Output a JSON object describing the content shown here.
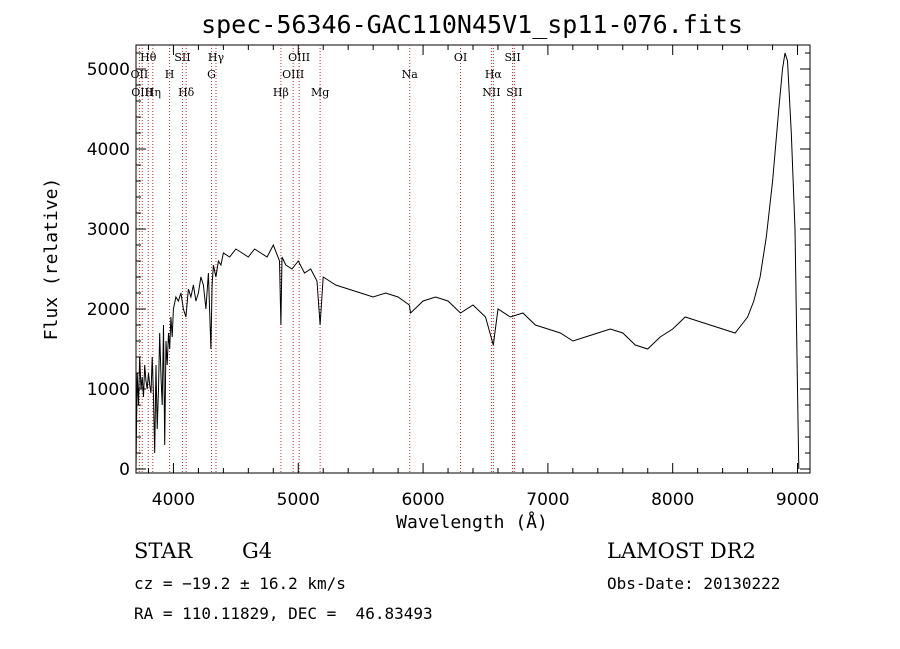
{
  "chart_data": {
    "type": "line",
    "title": "spec-56346-GAC110N45V1_sp11-076.fits",
    "xlabel": "Wavelength (Å)",
    "ylabel": "Flux (relative)",
    "xlim": [
      3700,
      9100
    ],
    "ylim": [
      -50,
      5300
    ],
    "x_ticks": [
      4000,
      5000,
      6000,
      7000,
      8000,
      9000
    ],
    "y_ticks": [
      0,
      1000,
      2000,
      3000,
      4000,
      5000
    ],
    "grid": false,
    "series": [
      {
        "x": [
          3700,
          3710,
          3720,
          3730,
          3740,
          3750,
          3760,
          3770,
          3780,
          3790,
          3800,
          3810,
          3820,
          3830,
          3840,
          3850,
          3860,
          3870,
          3880,
          3890,
          3900,
          3910,
          3920,
          3930,
          3940,
          3950,
          3960,
          3970,
          3980,
          3990,
          4000,
          4020,
          4040,
          4060,
          4080,
          4100,
          4120,
          4140,
          4160,
          4180,
          4200,
          4220,
          4240,
          4260,
          4280,
          4300,
          4310,
          4320,
          4340,
          4360,
          4380,
          4400,
          4450,
          4500,
          4550,
          4600,
          4650,
          4700,
          4750,
          4800,
          4850,
          4861,
          4870,
          4900,
          4950,
          5000,
          5050,
          5100,
          5150,
          5175,
          5200,
          5250,
          5300,
          5400,
          5500,
          5600,
          5700,
          5800,
          5890,
          5900,
          6000,
          6100,
          6200,
          6300,
          6400,
          6500,
          6563,
          6600,
          6700,
          6800,
          6900,
          7000,
          7100,
          7200,
          7300,
          7400,
          7500,
          7600,
          7700,
          7800,
          7900,
          8000,
          8100,
          8200,
          8300,
          8400,
          8500,
          8550,
          8600,
          8650,
          8700,
          8750,
          8800,
          8850,
          8880,
          8900,
          8920,
          8950,
          8980,
          9000,
          9010
        ],
        "y": [
          0,
          1200,
          800,
          1400,
          1000,
          1150,
          900,
          1300,
          1100,
          1000,
          1200,
          1050,
          950,
          1400,
          900,
          200,
          1300,
          500,
          1000,
          1700,
          1150,
          800,
          1800,
          300,
          1600,
          1300,
          1700,
          1500,
          1900,
          1650,
          2000,
          2150,
          2100,
          2200,
          2000,
          1900,
          2250,
          2150,
          2300,
          2100,
          2200,
          2400,
          2300,
          2000,
          2450,
          1500,
          2300,
          2550,
          2400,
          2600,
          2550,
          2700,
          2650,
          2750,
          2700,
          2650,
          2750,
          2700,
          2650,
          2800,
          2600,
          1800,
          2650,
          2550,
          2500,
          2600,
          2450,
          2500,
          2350,
          1800,
          2400,
          2350,
          2300,
          2250,
          2200,
          2150,
          2200,
          2150,
          2050,
          1950,
          2100,
          2150,
          2100,
          1950,
          2050,
          1900,
          1550,
          2000,
          1900,
          1950,
          1800,
          1750,
          1700,
          1600,
          1650,
          1700,
          1750,
          1700,
          1550,
          1500,
          1650,
          1750,
          1900,
          1850,
          1800,
          1750,
          1700,
          1800,
          1900,
          2100,
          2400,
          2900,
          3600,
          4500,
          5000,
          5200,
          5100,
          4200,
          3000,
          1000,
          0
        ]
      }
    ],
    "lines": [
      {
        "label": "Hθ",
        "x": 3798,
        "row": 1
      },
      {
        "label": "OII",
        "x": 3727,
        "row": 2
      },
      {
        "label": "OIII",
        "x": 3750,
        "row": 3
      },
      {
        "label": "Hη",
        "x": 3835,
        "row": 3
      },
      {
        "label": "SII",
        "x": 4072,
        "row": 1
      },
      {
        "label": "H",
        "x": 3969,
        "row": 2
      },
      {
        "label": "Hδ",
        "x": 4102,
        "row": 3
      },
      {
        "label": "Hγ",
        "x": 4341,
        "row": 1
      },
      {
        "label": "G",
        "x": 4305,
        "row": 2
      },
      {
        "label": "OIII",
        "x": 5007,
        "row": 1
      },
      {
        "label": "OIII",
        "x": 4959,
        "row": 2
      },
      {
        "label": "Hβ",
        "x": 4861,
        "row": 3
      },
      {
        "label": "Mg",
        "x": 5175,
        "row": 3
      },
      {
        "label": "Na",
        "x": 5893,
        "row": 2
      },
      {
        "label": "OI",
        "x": 6300,
        "row": 1
      },
      {
        "label": "Hα",
        "x": 6563,
        "row": 2
      },
      {
        "label": "NII",
        "x": 6548,
        "row": 3
      },
      {
        "label": "SII",
        "x": 6717,
        "row": 1
      },
      {
        "label": "SII",
        "x": 6731,
        "row": 3
      }
    ]
  },
  "info": {
    "object_class": "STAR",
    "subclass": "G4",
    "survey": "LAMOST DR2",
    "redshift": "cz = −19.2 ± 16.2 km/s",
    "obs_date": "Obs-Date: 20130222",
    "coords": "RA = 110.11829, DEC =  46.83493"
  },
  "colors": {
    "spectrum": "#000000",
    "line_marker": "#b03030",
    "axes": "#000000"
  }
}
